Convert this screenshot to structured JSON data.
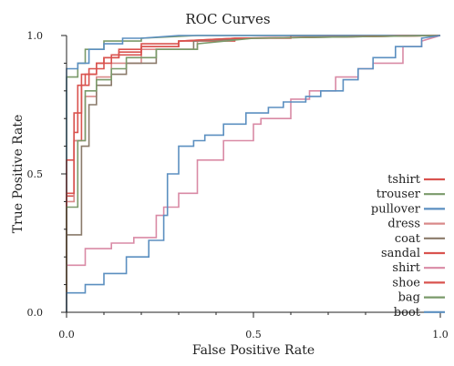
{
  "chart_data": {
    "type": "line",
    "title": "ROC Curves",
    "xlabel": "False Positive Rate",
    "ylabel": "True Positive Rate",
    "xlim": [
      0,
      1
    ],
    "ylim": [
      0,
      1
    ],
    "xticks": [
      0.0,
      0.5,
      1.0
    ],
    "xtick_labels": [
      "0.0",
      "0.5",
      "1.0"
    ],
    "yticks": [
      0.0,
      0.5,
      1.0
    ],
    "ytick_labels": [
      "0.0",
      "0.5",
      "1.0"
    ],
    "grid": false,
    "legend_position": "bottom-right",
    "series": [
      {
        "name": "tshirt",
        "color": "#d9534f",
        "x": [
          0.0,
          0.0,
          0.02,
          0.02,
          0.04,
          0.04,
          0.06,
          0.06,
          0.1,
          0.1,
          0.14,
          0.14,
          0.2,
          0.2,
          0.3,
          0.3,
          0.45,
          0.45,
          0.6,
          0.6,
          0.8,
          1.0
        ],
        "y": [
          0.0,
          0.42,
          0.42,
          0.62,
          0.62,
          0.82,
          0.82,
          0.88,
          0.88,
          0.92,
          0.92,
          0.95,
          0.95,
          0.97,
          0.97,
          0.98,
          0.98,
          0.99,
          0.99,
          1.0,
          1.0,
          1.0
        ]
      },
      {
        "name": "trouser",
        "color": "#7a9a6a",
        "x": [
          0.0,
          0.0,
          0.03,
          0.03,
          0.05,
          0.05,
          0.1,
          0.1,
          0.2,
          0.2,
          0.35,
          1.0
        ],
        "y": [
          0.0,
          0.85,
          0.85,
          0.9,
          0.9,
          0.95,
          0.95,
          0.98,
          0.98,
          0.99,
          1.0,
          1.0
        ]
      },
      {
        "name": "pullover",
        "color": "#5b8fc0",
        "x": [
          0.0,
          0.0,
          0.03,
          0.03,
          0.06,
          0.06,
          0.1,
          0.1,
          0.15,
          0.15,
          0.2,
          0.3,
          1.0
        ],
        "y": [
          0.0,
          0.88,
          0.88,
          0.9,
          0.9,
          0.95,
          0.95,
          0.97,
          0.97,
          0.99,
          0.99,
          1.0,
          1.0
        ]
      },
      {
        "name": "dress",
        "color": "#d98a8a",
        "x": [
          0.0,
          0.0,
          0.02,
          0.02,
          0.05,
          0.05,
          0.08,
          0.08,
          0.12,
          0.12,
          0.2,
          0.2,
          0.35,
          0.35,
          0.5,
          1.0
        ],
        "y": [
          0.0,
          0.4,
          0.4,
          0.62,
          0.62,
          0.78,
          0.78,
          0.85,
          0.85,
          0.9,
          0.9,
          0.95,
          0.95,
          0.98,
          0.99,
          1.0
        ]
      },
      {
        "name": "coat",
        "color": "#8a7a6a",
        "x": [
          0.0,
          0.0,
          0.04,
          0.04,
          0.06,
          0.06,
          0.08,
          0.08,
          0.12,
          0.12,
          0.16,
          0.16,
          0.24,
          0.24,
          0.34,
          0.34,
          0.5,
          1.0
        ],
        "y": [
          0.0,
          0.28,
          0.28,
          0.6,
          0.6,
          0.75,
          0.75,
          0.82,
          0.82,
          0.86,
          0.86,
          0.9,
          0.9,
          0.95,
          0.95,
          0.98,
          0.99,
          1.0
        ]
      },
      {
        "name": "sandal",
        "color": "#d9534f",
        "x": [
          0.0,
          0.0,
          0.02,
          0.02,
          0.04,
          0.04,
          0.08,
          0.08,
          0.12,
          0.12,
          0.2,
          0.2,
          0.3,
          0.3,
          0.45,
          1.0
        ],
        "y": [
          0.0,
          0.55,
          0.55,
          0.72,
          0.72,
          0.86,
          0.86,
          0.9,
          0.9,
          0.93,
          0.93,
          0.96,
          0.96,
          0.98,
          0.99,
          1.0
        ]
      },
      {
        "name": "shirt",
        "color": "#d98aa5",
        "x": [
          0.0,
          0.0,
          0.05,
          0.05,
          0.12,
          0.12,
          0.18,
          0.18,
          0.24,
          0.24,
          0.26,
          0.26,
          0.3,
          0.3,
          0.35,
          0.35,
          0.42,
          0.42,
          0.5,
          0.5,
          0.52,
          0.52,
          0.6,
          0.6,
          0.65,
          0.65,
          0.72,
          0.72,
          0.78,
          0.78,
          0.82,
          0.82,
          0.9,
          0.9,
          0.95,
          0.95,
          1.0
        ],
        "y": [
          0.0,
          0.17,
          0.17,
          0.23,
          0.23,
          0.25,
          0.25,
          0.27,
          0.27,
          0.35,
          0.35,
          0.38,
          0.38,
          0.43,
          0.43,
          0.55,
          0.55,
          0.62,
          0.62,
          0.68,
          0.68,
          0.7,
          0.7,
          0.77,
          0.77,
          0.8,
          0.8,
          0.85,
          0.85,
          0.88,
          0.88,
          0.9,
          0.9,
          0.96,
          0.96,
          0.98,
          1.0
        ]
      },
      {
        "name": "shoe",
        "color": "#d9534f",
        "x": [
          0.0,
          0.0,
          0.02,
          0.02,
          0.03,
          0.03,
          0.05,
          0.05,
          0.08,
          0.08,
          0.1,
          0.1,
          0.14,
          0.14,
          0.2,
          0.2,
          0.3,
          0.3,
          0.45,
          1.0
        ],
        "y": [
          0.0,
          0.43,
          0.43,
          0.65,
          0.65,
          0.82,
          0.82,
          0.86,
          0.86,
          0.9,
          0.9,
          0.92,
          0.92,
          0.94,
          0.94,
          0.96,
          0.96,
          0.98,
          0.99,
          1.0
        ]
      },
      {
        "name": "bag",
        "color": "#7a9a6a",
        "x": [
          0.0,
          0.0,
          0.03,
          0.03,
          0.05,
          0.05,
          0.08,
          0.08,
          0.12,
          0.12,
          0.16,
          0.16,
          0.24,
          0.24,
          0.35,
          0.35,
          0.5,
          1.0
        ],
        "y": [
          0.0,
          0.38,
          0.38,
          0.62,
          0.62,
          0.8,
          0.8,
          0.84,
          0.84,
          0.88,
          0.88,
          0.92,
          0.92,
          0.95,
          0.95,
          0.97,
          0.99,
          1.0
        ]
      },
      {
        "name": "boot",
        "color": "#5b8fc0",
        "x": [
          0.0,
          0.0,
          0.05,
          0.05,
          0.1,
          0.1,
          0.16,
          0.16,
          0.22,
          0.22,
          0.26,
          0.26,
          0.27,
          0.27,
          0.3,
          0.3,
          0.34,
          0.34,
          0.37,
          0.37,
          0.42,
          0.42,
          0.48,
          0.48,
          0.54,
          0.54,
          0.58,
          0.58,
          0.64,
          0.64,
          0.68,
          0.68,
          0.74,
          0.74,
          0.78,
          0.78,
          0.82,
          0.82,
          0.88,
          0.88,
          0.95,
          0.95,
          1.0
        ],
        "y": [
          0.0,
          0.07,
          0.07,
          0.1,
          0.1,
          0.14,
          0.14,
          0.2,
          0.2,
          0.26,
          0.26,
          0.35,
          0.35,
          0.5,
          0.5,
          0.6,
          0.6,
          0.62,
          0.62,
          0.64,
          0.64,
          0.68,
          0.68,
          0.72,
          0.72,
          0.74,
          0.74,
          0.76,
          0.76,
          0.78,
          0.78,
          0.8,
          0.8,
          0.84,
          0.84,
          0.88,
          0.88,
          0.92,
          0.92,
          0.96,
          0.96,
          0.99,
          1.0
        ]
      }
    ]
  }
}
